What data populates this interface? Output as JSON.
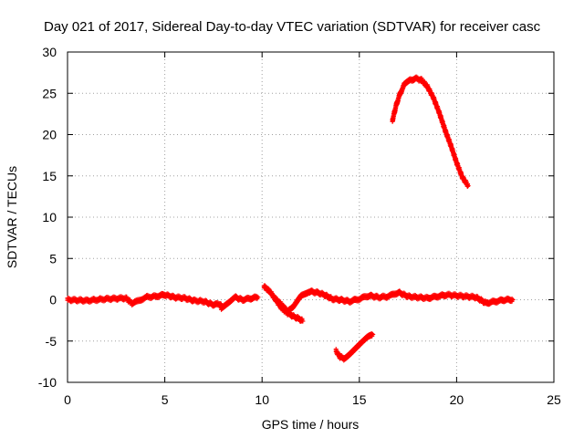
{
  "chart_data": {
    "type": "scatter",
    "title": "Day 021 of 2017, Sidereal Day-to-day VTEC variation (SDTVAR) for receiver casc",
    "xlabel": "GPS time / hours",
    "ylabel": "SDTVAR / TECUs",
    "xlim": [
      0,
      25
    ],
    "ylim": [
      -10,
      30
    ],
    "xticks": [
      0,
      5,
      10,
      15,
      20,
      25
    ],
    "yticks": [
      -10,
      -5,
      0,
      5,
      10,
      15,
      20,
      25,
      30
    ],
    "xtick_labels": [
      "0",
      "5",
      "10",
      "15",
      "20",
      "25"
    ],
    "ytick_labels": [
      "-10",
      "-5",
      "0",
      "5",
      "10",
      "15",
      "20",
      "25",
      "30"
    ],
    "grid": true,
    "marker": "plus",
    "series_color": "#ff0000",
    "series": [
      {
        "name": "segment-1",
        "x": [
          0,
          1,
          2,
          3,
          3.3,
          3.5,
          4,
          4.5,
          5,
          5.5,
          6,
          6.5,
          7,
          7.5,
          7.9
        ],
        "y": [
          0,
          -0.1,
          0.1,
          0.2,
          -0.4,
          -0.3,
          0.3,
          0.4,
          0.6,
          0.3,
          0.2,
          -0.1,
          -0.2,
          -0.6,
          -0.5
        ]
      },
      {
        "name": "segment-2",
        "x": [
          7.9,
          8.2,
          8.6,
          9.0,
          9.5,
          9.8
        ],
        "y": [
          -1.0,
          -0.4,
          0.3,
          0.0,
          0.2,
          0.3
        ]
      },
      {
        "name": "segment-3",
        "x": [
          10.1,
          10.4,
          10.7,
          11.0,
          11.3,
          11.6,
          11.9,
          12.1
        ],
        "y": [
          1.6,
          1.0,
          0.0,
          -1.0,
          -1.6,
          -2.0,
          -2.3,
          -2.6
        ]
      },
      {
        "name": "segment-4",
        "x": [
          10.6,
          11.0,
          11.3,
          11.6,
          12.0,
          12.4,
          12.8,
          13.2,
          13.6,
          14.0,
          14.5,
          15.0,
          15.5,
          16.0,
          16.5,
          17.0,
          17.5,
          18.0,
          18.5,
          19.0,
          19.5,
          20.0,
          20.5,
          21.0,
          21.5,
          22.0,
          22.5,
          22.9
        ],
        "y": [
          0.3,
          -0.6,
          -1.4,
          -0.8,
          0.4,
          1.0,
          0.9,
          0.6,
          0.1,
          0.0,
          -0.2,
          0.1,
          0.5,
          0.3,
          0.4,
          0.9,
          0.4,
          0.3,
          0.2,
          0.4,
          0.6,
          0.5,
          0.4,
          0.3,
          -0.4,
          -0.2,
          0.0,
          0.0
        ]
      },
      {
        "name": "segment-5",
        "x": [
          13.8,
          14.0,
          14.2,
          14.5,
          14.8,
          15.1,
          15.4,
          15.7
        ],
        "y": [
          -6.2,
          -6.9,
          -7.1,
          -6.6,
          -5.9,
          -5.2,
          -4.6,
          -4.2
        ]
      },
      {
        "name": "segment-6",
        "x": [
          16.7,
          16.9,
          17.1,
          17.3,
          17.6,
          17.9,
          18.2,
          18.5,
          18.8,
          19.1,
          19.4,
          19.7,
          20.0,
          20.3,
          20.6
        ],
        "y": [
          21.7,
          23.6,
          25.0,
          26.0,
          26.6,
          26.8,
          26.6,
          25.8,
          24.5,
          22.7,
          20.6,
          18.7,
          16.6,
          14.8,
          13.8
        ]
      }
    ]
  }
}
